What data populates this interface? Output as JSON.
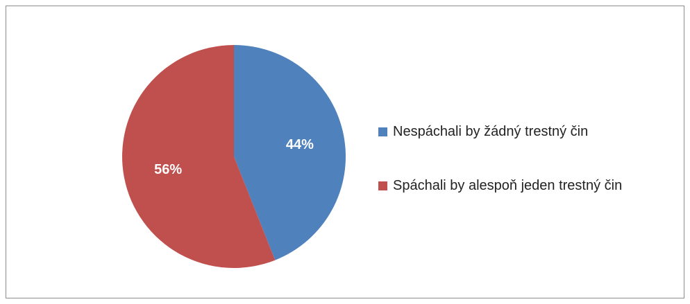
{
  "chart_data": {
    "type": "pie",
    "title": "",
    "slices": [
      {
        "label": "Nespáchali by žádný trestný čin",
        "value": 44,
        "value_label": "44%",
        "color": "#4f81bd"
      },
      {
        "label": "Spáchali by alespoň jeden trestný čin",
        "value": 56,
        "value_label": "56%",
        "color": "#c0504d"
      }
    ],
    "legend_position": "right",
    "start_angle_deg": 0,
    "direction": "clockwise"
  }
}
